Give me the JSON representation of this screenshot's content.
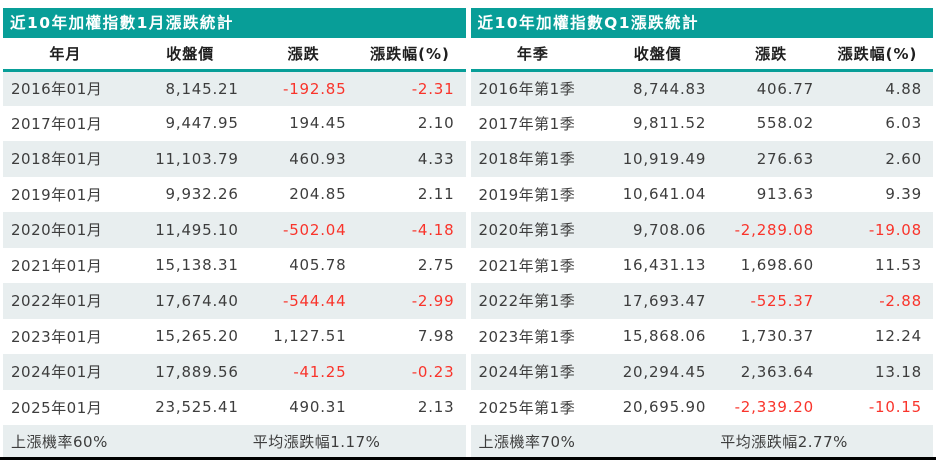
{
  "colors": {
    "teal": "#089e98",
    "stripe": "#e8eeef",
    "negative_red": "#f9342b",
    "text": "#3d3d3d",
    "bottom_rule": "#000000"
  },
  "tables": [
    {
      "title": "近10年加權指數1月漲跌統計",
      "columns": [
        "年月",
        "收盤價",
        "漲跌",
        "漲跌幅(%)"
      ],
      "rows": [
        [
          "2016年01月",
          "8,145.21",
          "-192.85",
          "-2.31"
        ],
        [
          "2017年01月",
          "9,447.95",
          "194.45",
          "2.10"
        ],
        [
          "2018年01月",
          "11,103.79",
          "460.93",
          "4.33"
        ],
        [
          "2019年01月",
          "9,932.26",
          "204.85",
          "2.11"
        ],
        [
          "2020年01月",
          "11,495.10",
          "-502.04",
          "-4.18"
        ],
        [
          "2021年01月",
          "15,138.31",
          "405.78",
          "2.75"
        ],
        [
          "2022年01月",
          "17,674.40",
          "-544.44",
          "-2.99"
        ],
        [
          "2023年01月",
          "15,265.20",
          "1,127.51",
          "7.98"
        ],
        [
          "2024年01月",
          "17,889.56",
          "-41.25",
          "-0.23"
        ],
        [
          "2025年01月",
          "23,525.41",
          "490.31",
          "2.13"
        ]
      ],
      "summary": {
        "win_rate": "上漲機率60%",
        "avg_change": "平均漲跌幅1.17%"
      }
    },
    {
      "title": "近10年加權指數Q1漲跌統計",
      "columns": [
        "年季",
        "收盤價",
        "漲跌",
        "漲跌幅(%)"
      ],
      "rows": [
        [
          "2016年第1季",
          "8,744.83",
          "406.77",
          "4.88"
        ],
        [
          "2017年第1季",
          "9,811.52",
          "558.02",
          "6.03"
        ],
        [
          "2018年第1季",
          "10,919.49",
          "276.63",
          "2.60"
        ],
        [
          "2019年第1季",
          "10,641.04",
          "913.63",
          "9.39"
        ],
        [
          "2020年第1季",
          "9,708.06",
          "-2,289.08",
          "-19.08"
        ],
        [
          "2021年第1季",
          "16,431.13",
          "1,698.60",
          "11.53"
        ],
        [
          "2022年第1季",
          "17,693.47",
          "-525.37",
          "-2.88"
        ],
        [
          "2023年第1季",
          "15,868.06",
          "1,730.37",
          "12.24"
        ],
        [
          "2024年第1季",
          "20,294.45",
          "2,363.64",
          "13.18"
        ],
        [
          "2025年第1季",
          "20,695.90",
          "-2,339.20",
          "-10.15"
        ]
      ],
      "summary": {
        "win_rate": "上漲機率70%",
        "avg_change": "平均漲跌幅2.77%"
      }
    }
  ],
  "chart_data": [
    {
      "type": "table",
      "title": "近10年加權指數1月漲跌統計",
      "columns": [
        "年月",
        "收盤價",
        "漲跌",
        "漲跌幅(%)"
      ],
      "rows": [
        {
          "period": "2016年01月",
          "close": 8145.21,
          "change": -192.85,
          "change_pct": -2.31
        },
        {
          "period": "2017年01月",
          "close": 9447.95,
          "change": 194.45,
          "change_pct": 2.1
        },
        {
          "period": "2018年01月",
          "close": 11103.79,
          "change": 460.93,
          "change_pct": 4.33
        },
        {
          "period": "2019年01月",
          "close": 9932.26,
          "change": 204.85,
          "change_pct": 2.11
        },
        {
          "period": "2020年01月",
          "close": 11495.1,
          "change": -502.04,
          "change_pct": -4.18
        },
        {
          "period": "2021年01月",
          "close": 15138.31,
          "change": 405.78,
          "change_pct": 2.75
        },
        {
          "period": "2022年01月",
          "close": 17674.4,
          "change": -544.44,
          "change_pct": -2.99
        },
        {
          "period": "2023年01月",
          "close": 15265.2,
          "change": 1127.51,
          "change_pct": 7.98
        },
        {
          "period": "2024年01月",
          "close": 17889.56,
          "change": -41.25,
          "change_pct": -0.23
        },
        {
          "period": "2025年01月",
          "close": 23525.41,
          "change": 490.31,
          "change_pct": 2.13
        }
      ],
      "win_rate_pct": 60,
      "avg_change_pct": 1.17
    },
    {
      "type": "table",
      "title": "近10年加權指數Q1漲跌統計",
      "columns": [
        "年季",
        "收盤價",
        "漲跌",
        "漲跌幅(%)"
      ],
      "rows": [
        {
          "period": "2016年第1季",
          "close": 8744.83,
          "change": 406.77,
          "change_pct": 4.88
        },
        {
          "period": "2017年第1季",
          "close": 9811.52,
          "change": 558.02,
          "change_pct": 6.03
        },
        {
          "period": "2018年第1季",
          "close": 10919.49,
          "change": 276.63,
          "change_pct": 2.6
        },
        {
          "period": "2019年第1季",
          "close": 10641.04,
          "change": 913.63,
          "change_pct": 9.39
        },
        {
          "period": "2020年第1季",
          "close": 9708.06,
          "change": -2289.08,
          "change_pct": -19.08
        },
        {
          "period": "2021年第1季",
          "close": 16431.13,
          "change": 1698.6,
          "change_pct": 11.53
        },
        {
          "period": "2022年第1季",
          "close": 17693.47,
          "change": -525.37,
          "change_pct": -2.88
        },
        {
          "period": "2023年第1季",
          "close": 15868.06,
          "change": 1730.37,
          "change_pct": 12.24
        },
        {
          "period": "2024年第1季",
          "close": 20294.45,
          "change": 2363.64,
          "change_pct": 13.18
        },
        {
          "period": "2025年第1季",
          "close": 20695.9,
          "change": -2339.2,
          "change_pct": -10.15
        }
      ],
      "win_rate_pct": 70,
      "avg_change_pct": 2.77
    }
  ]
}
